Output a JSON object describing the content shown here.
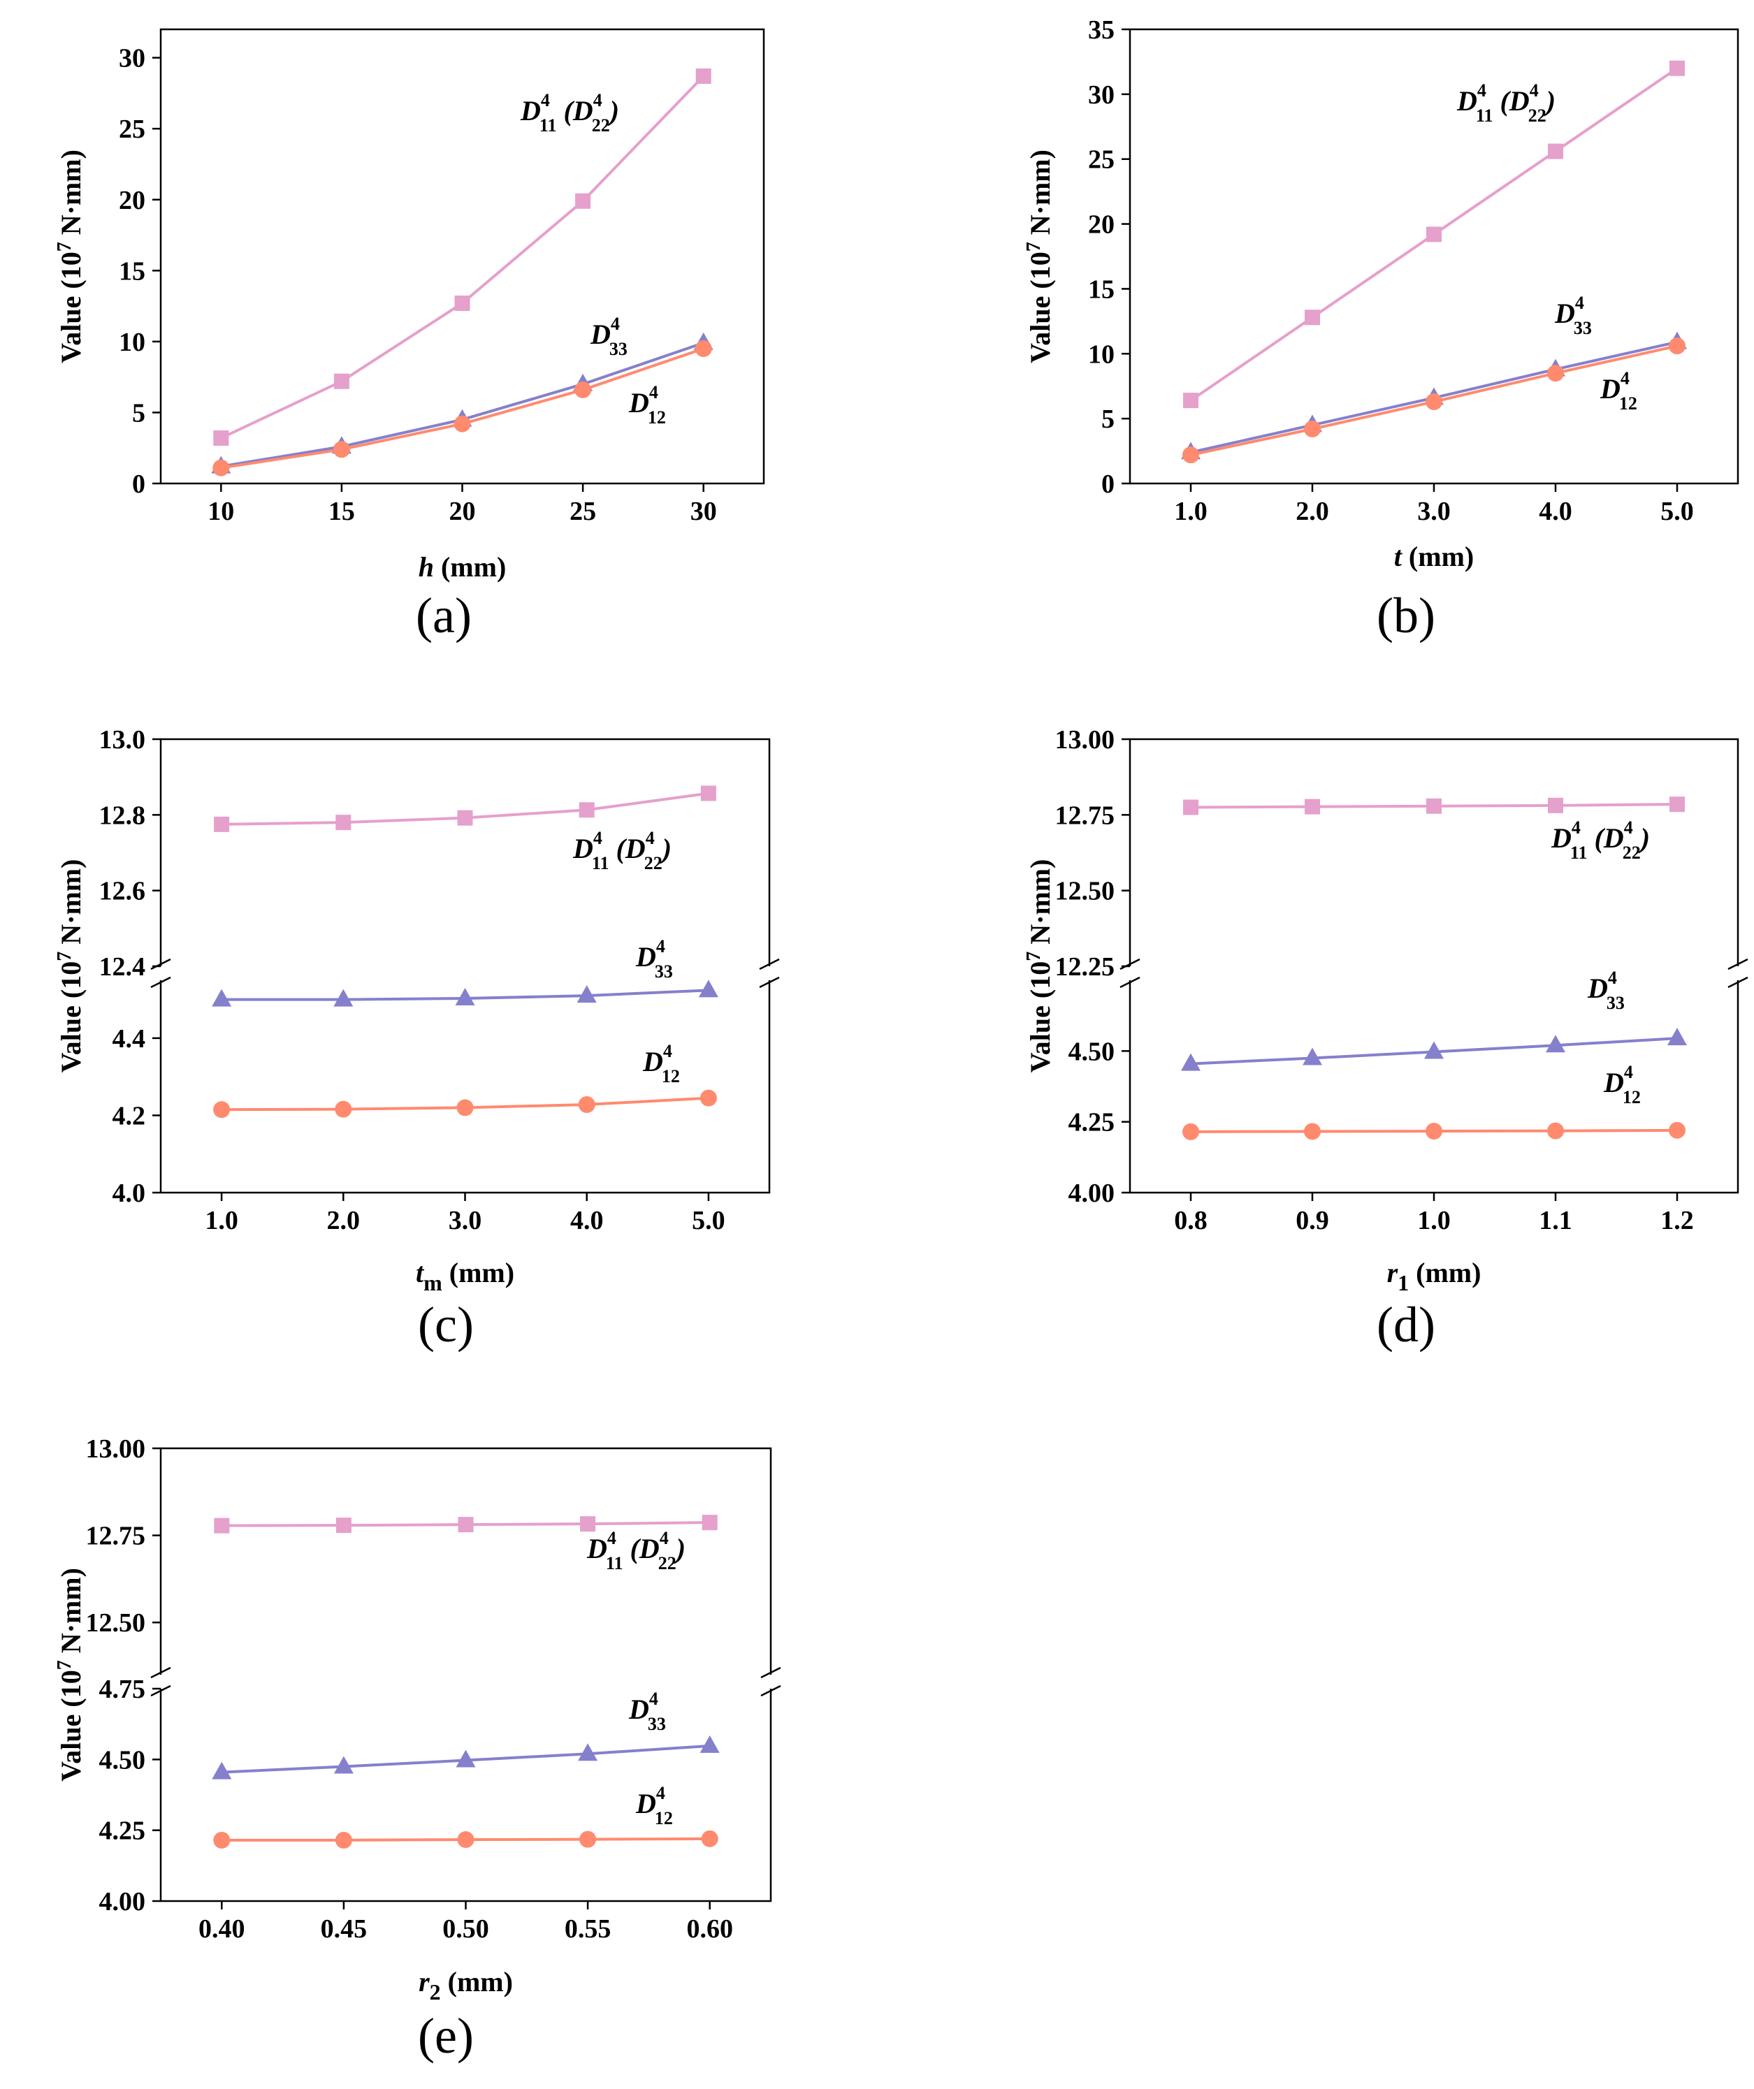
{
  "colors": {
    "D11": "#E5A0CC",
    "D33": "#8580CC",
    "D12": "#FF8A6E"
  },
  "chart_data": [
    {
      "id": "a",
      "type": "line",
      "panel_label": "(a)",
      "ylabel": "Value (10^7 N·mm)",
      "xlabel_var": "h",
      "xlabel_sub": "",
      "xlabel_unit": " (mm)",
      "x": [
        10,
        15,
        20,
        25,
        30
      ],
      "x_ticks": [
        "10",
        "15",
        "20",
        "25",
        "30"
      ],
      "xlim": [
        7.5,
        32.5
      ],
      "ylim": [
        0,
        32
      ],
      "y_ticks": [
        "0",
        "5",
        "10",
        "15",
        "20",
        "25",
        "30"
      ],
      "y_tick_values": [
        0,
        5,
        10,
        15,
        20,
        25,
        30
      ],
      "series": [
        {
          "key": "D11",
          "name": "D11 (D22)",
          "marker": "square",
          "values": [
            3.2,
            7.2,
            12.7,
            19.9,
            28.7
          ]
        },
        {
          "key": "D33",
          "name": "D33",
          "marker": "triangle",
          "values": [
            1.2,
            2.6,
            4.5,
            7.0,
            9.9
          ]
        },
        {
          "key": "D12",
          "name": "D12",
          "marker": "circle",
          "values": [
            1.1,
            2.4,
            4.2,
            6.6,
            9.5
          ]
        }
      ],
      "labels": [
        {
          "key": "D11",
          "main": "D",
          "sup": "4",
          "sub": "11",
          "rest": " (D",
          "sup2": "4",
          "sub2": "22",
          "tail": ")"
        },
        {
          "key": "D33",
          "main": "D",
          "sup": "4",
          "sub": "33"
        },
        {
          "key": "D12",
          "main": "D",
          "sup": "4",
          "sub": "12"
        }
      ]
    },
    {
      "id": "b",
      "type": "line",
      "panel_label": "(b)",
      "ylabel": "Value (10^7 N·mm)",
      "xlabel_var": "t",
      "xlabel_sub": "",
      "xlabel_unit": " (mm)",
      "x": [
        1.0,
        2.0,
        3.0,
        4.0,
        5.0
      ],
      "x_ticks": [
        "1.0",
        "2.0",
        "3.0",
        "4.0",
        "5.0"
      ],
      "xlim": [
        0.5,
        5.5
      ],
      "ylim": [
        0,
        35
      ],
      "y_ticks": [
        "0",
        "5",
        "10",
        "15",
        "20",
        "25",
        "30",
        "35"
      ],
      "y_tick_values": [
        0,
        5,
        10,
        15,
        20,
        25,
        30,
        35
      ],
      "series": [
        {
          "key": "D11",
          "name": "D11 (D22)",
          "marker": "square",
          "values": [
            6.4,
            12.8,
            19.2,
            25.6,
            32.0
          ]
        },
        {
          "key": "D33",
          "name": "D33",
          "marker": "triangle",
          "values": [
            2.4,
            4.5,
            6.6,
            8.8,
            10.9
          ]
        },
        {
          "key": "D12",
          "name": "D12",
          "marker": "circle",
          "values": [
            2.2,
            4.2,
            6.3,
            8.5,
            10.6
          ]
        }
      ],
      "labels": [
        {
          "key": "D11",
          "main": "D",
          "sup": "4",
          "sub": "11",
          "rest": " (D",
          "sup2": "4",
          "sub2": "22",
          "tail": ")"
        },
        {
          "key": "D33",
          "main": "D",
          "sup": "4",
          "sub": "33"
        },
        {
          "key": "D12",
          "main": "D",
          "sup": "4",
          "sub": "12"
        }
      ]
    },
    {
      "id": "c",
      "type": "line",
      "panel_label": "(c)",
      "ylabel": "Value (10^7 N·mm)",
      "xlabel_var": "t",
      "xlabel_sub": "m",
      "xlabel_unit": " (mm)",
      "x": [
        1.0,
        2.0,
        3.0,
        4.0,
        5.0
      ],
      "x_ticks": [
        "1.0",
        "2.0",
        "3.0",
        "4.0",
        "5.0"
      ],
      "xlim": [
        0.5,
        5.5
      ],
      "broken_axis": {
        "lower": [
          4.0,
          4.55
        ],
        "upper": [
          12.4,
          13.0
        ]
      },
      "y_ticks_lower": [
        "4.0",
        "4.2",
        "4.4"
      ],
      "y_tick_values_lower": [
        4.0,
        4.2,
        4.4
      ],
      "y_ticks_upper": [
        "12.4",
        "12.6",
        "12.8",
        "13.0"
      ],
      "y_tick_values_upper": [
        12.4,
        12.6,
        12.8,
        13.0
      ],
      "series": [
        {
          "key": "D11",
          "name": "D11 (D22)",
          "marker": "square",
          "values": [
            12.775,
            12.78,
            12.792,
            12.813,
            12.857
          ]
        },
        {
          "key": "D33",
          "name": "D33",
          "marker": "triangle",
          "values": [
            4.5,
            4.5,
            4.503,
            4.51,
            4.524
          ]
        },
        {
          "key": "D12",
          "name": "D12",
          "marker": "circle",
          "values": [
            4.215,
            4.216,
            4.22,
            4.228,
            4.245
          ]
        }
      ],
      "labels": [
        {
          "key": "D11",
          "main": "D",
          "sup": "4",
          "sub": "11",
          "rest": " (D",
          "sup2": "4",
          "sub2": "22",
          "tail": ")"
        },
        {
          "key": "D33",
          "main": "D",
          "sup": "4",
          "sub": "33"
        },
        {
          "key": "D12",
          "main": "D",
          "sup": "4",
          "sub": "12"
        }
      ]
    },
    {
      "id": "d",
      "type": "line",
      "panel_label": "(d)",
      "ylabel": "Value (10^7 N·mm)",
      "xlabel_var": "r",
      "xlabel_sub": "1",
      "xlabel_unit": " (mm)",
      "x": [
        0.8,
        0.9,
        1.0,
        1.1,
        1.2
      ],
      "x_ticks": [
        "0.8",
        "0.9",
        "1.0",
        "1.1",
        "1.2"
      ],
      "xlim": [
        0.75,
        1.25
      ],
      "broken_axis": {
        "lower": [
          4.0,
          4.75
        ],
        "upper": [
          12.25,
          13.0
        ]
      },
      "y_ticks_lower": [
        "4.00",
        "4.25",
        "4.50"
      ],
      "y_tick_values_lower": [
        4.0,
        4.25,
        4.5
      ],
      "y_ticks_upper": [
        "12.25",
        "12.50",
        "12.75",
        "13.00"
      ],
      "y_tick_values_upper": [
        12.25,
        12.5,
        12.75,
        13.0
      ],
      "series": [
        {
          "key": "D11",
          "name": "D11 (D22)",
          "marker": "square",
          "values": [
            12.775,
            12.777,
            12.779,
            12.781,
            12.785
          ]
        },
        {
          "key": "D33",
          "name": "D33",
          "marker": "triangle",
          "values": [
            4.455,
            4.475,
            4.497,
            4.52,
            4.545
          ]
        },
        {
          "key": "D12",
          "name": "D12",
          "marker": "circle",
          "values": [
            4.215,
            4.216,
            4.217,
            4.218,
            4.22
          ]
        }
      ],
      "labels": [
        {
          "key": "D11",
          "main": "D",
          "sup": "4",
          "sub": "11",
          "rest": " (D",
          "sup2": "4",
          "sub2": "22",
          "tail": ")"
        },
        {
          "key": "D33",
          "main": "D",
          "sup": "4",
          "sub": "33"
        },
        {
          "key": "D12",
          "main": "D",
          "sup": "4",
          "sub": "12"
        }
      ]
    },
    {
      "id": "e",
      "type": "line",
      "panel_label": "(e)",
      "ylabel": "Value (10^7 N·mm)",
      "xlabel_var": "r",
      "xlabel_sub": "2",
      "xlabel_unit": " (mm)",
      "x": [
        0.4,
        0.45,
        0.5,
        0.55,
        0.6
      ],
      "x_ticks": [
        "0.40",
        "0.45",
        "0.50",
        "0.55",
        "0.60"
      ],
      "xlim": [
        0.375,
        0.625
      ],
      "broken_axis": {
        "lower": [
          4.0,
          4.75
        ],
        "upper": [
          12.35,
          13.0
        ]
      },
      "y_ticks_lower": [
        "4.00",
        "4.25",
        "4.50",
        "4.75"
      ],
      "y_tick_values_lower": [
        4.0,
        4.25,
        4.5,
        4.75
      ],
      "y_ticks_upper": [
        "12.50",
        "12.75",
        "13.00"
      ],
      "y_tick_values_upper": [
        12.5,
        12.75,
        13.0
      ],
      "series": [
        {
          "key": "D11",
          "name": "D11 (D22)",
          "marker": "square",
          "values": [
            12.778,
            12.779,
            12.781,
            12.783,
            12.787
          ]
        },
        {
          "key": "D33",
          "name": "D33",
          "marker": "triangle",
          "values": [
            4.455,
            4.475,
            4.497,
            4.52,
            4.548
          ]
        },
        {
          "key": "D12",
          "name": "D12",
          "marker": "circle",
          "values": [
            4.215,
            4.215,
            4.217,
            4.218,
            4.22
          ]
        }
      ],
      "labels": [
        {
          "key": "D11",
          "main": "D",
          "sup": "4",
          "sub": "11",
          "rest": " (D",
          "sup2": "4",
          "sub2": "22",
          "tail": ")"
        },
        {
          "key": "D33",
          "main": "D",
          "sup": "4",
          "sub": "33"
        },
        {
          "key": "D12",
          "main": "D",
          "sup": "4",
          "sub": "12"
        }
      ]
    }
  ]
}
